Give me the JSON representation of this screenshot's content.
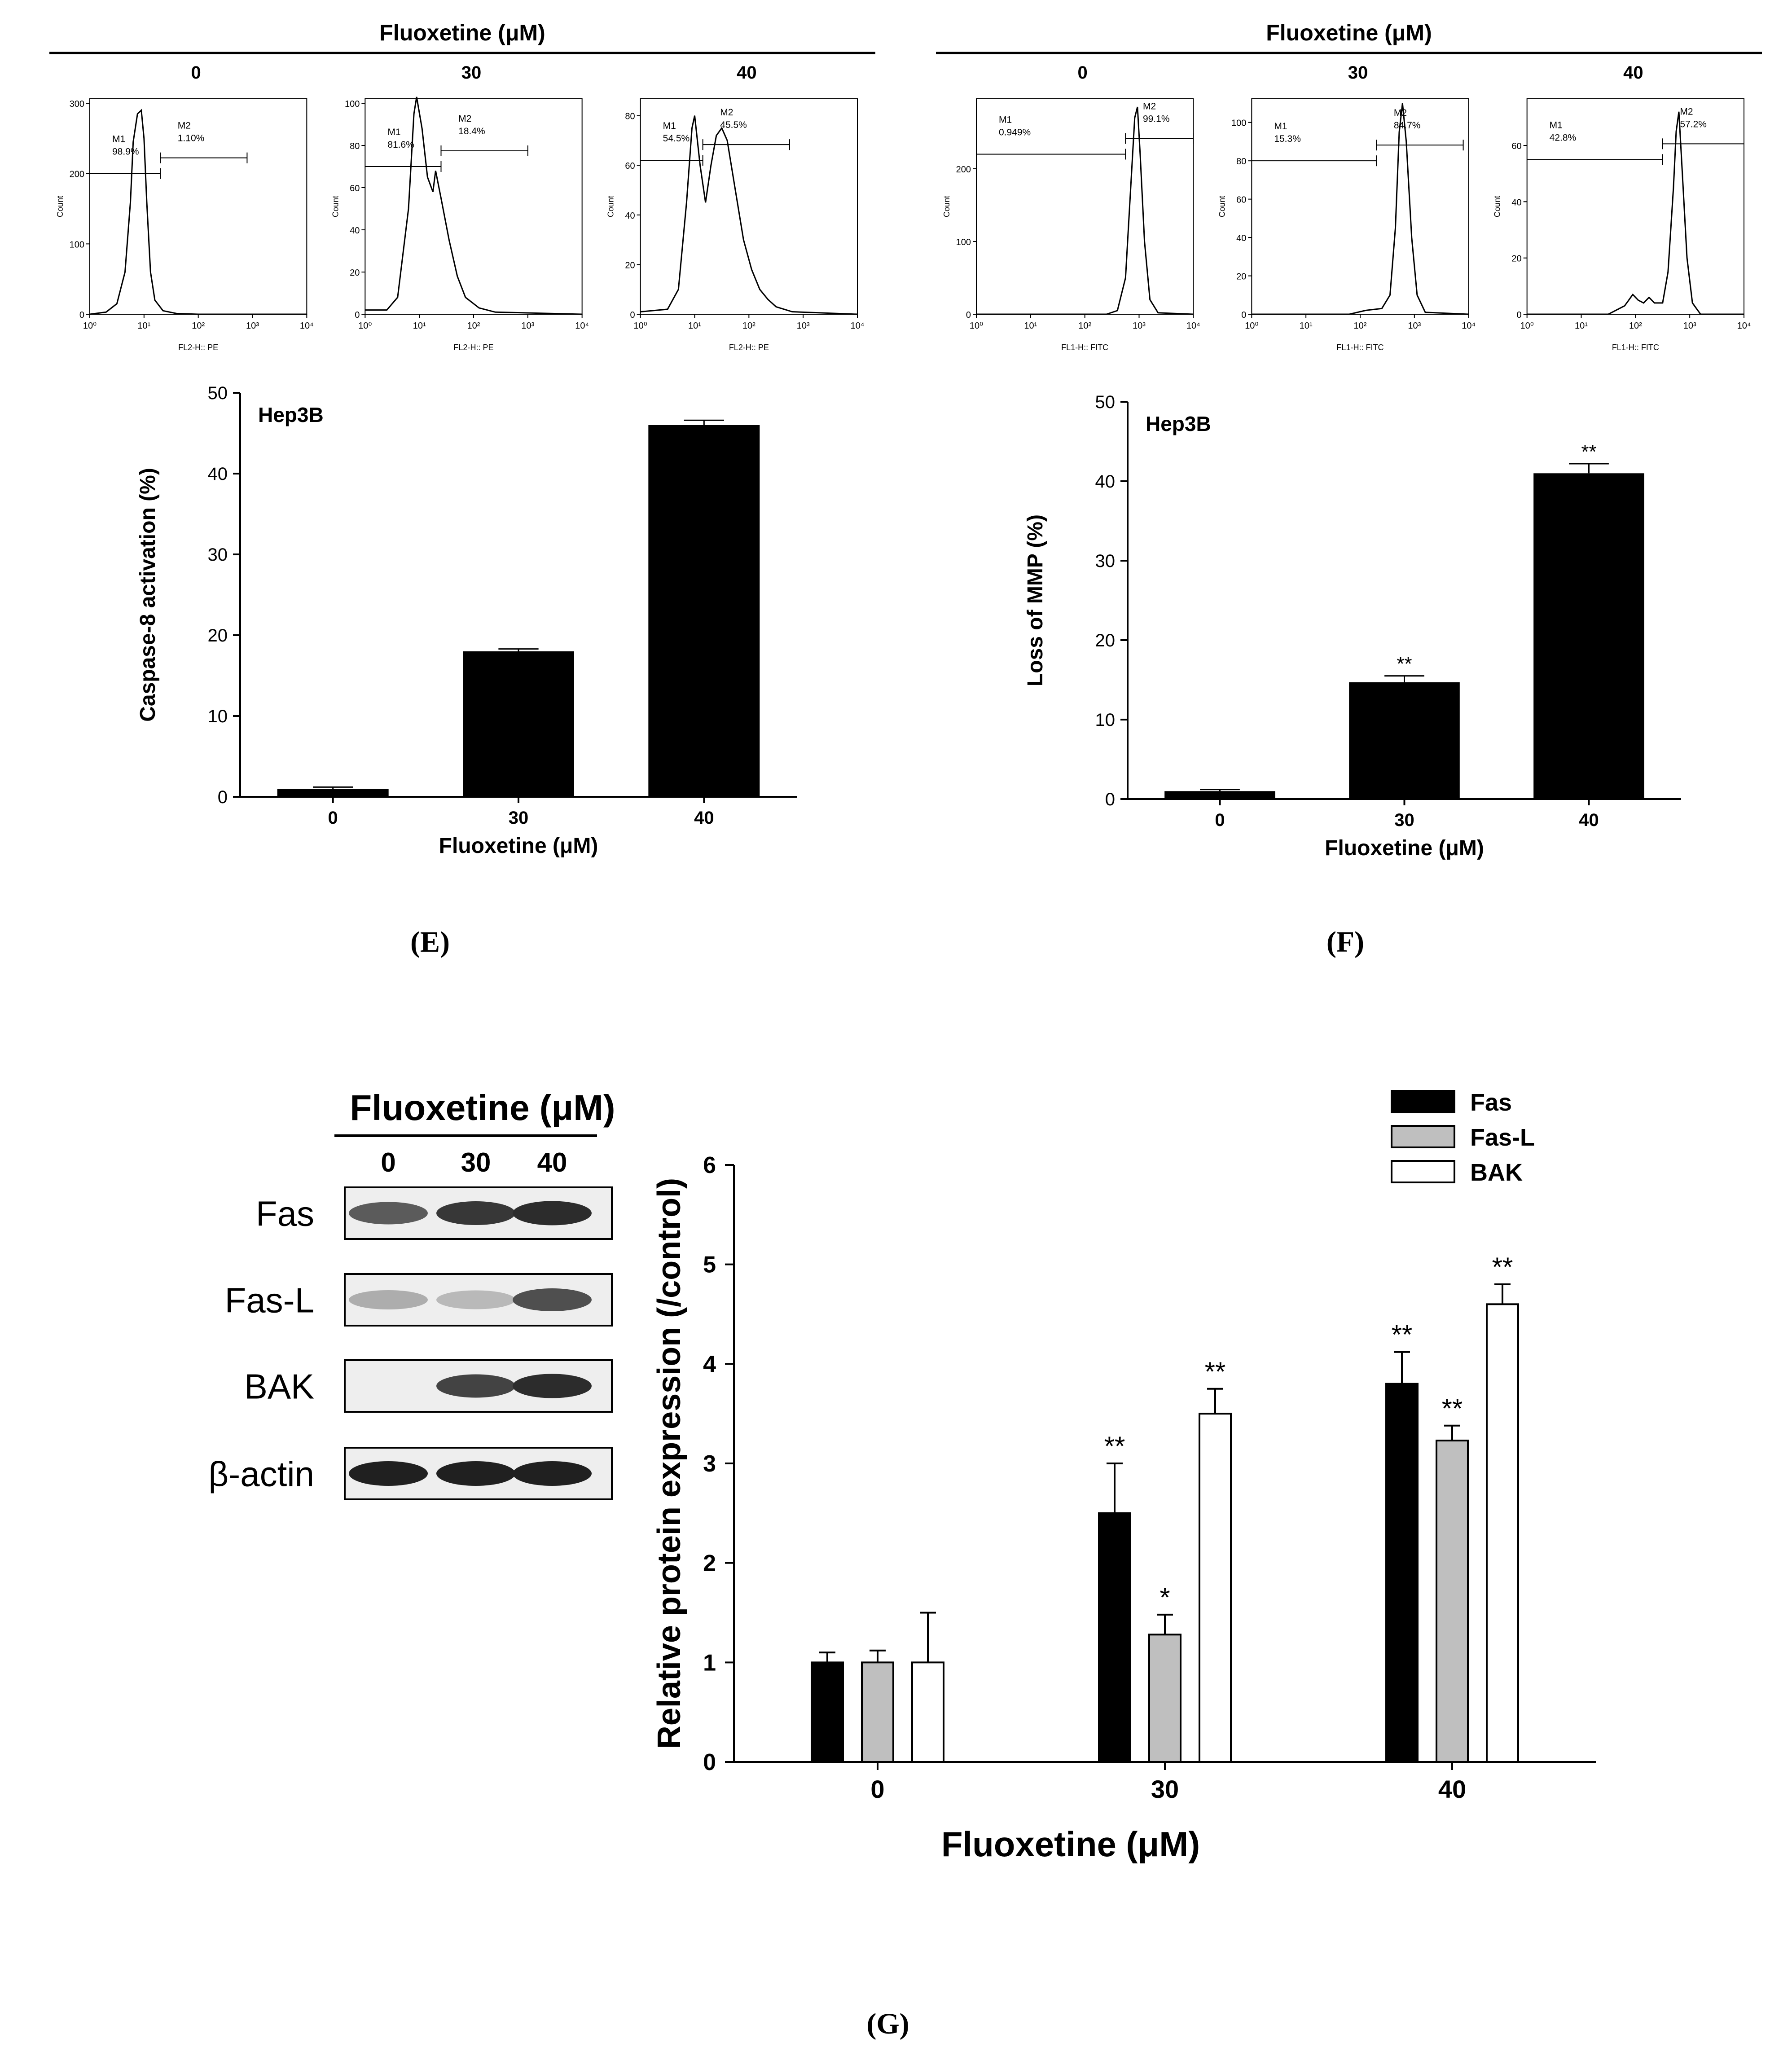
{
  "flow_top": [
    {
      "header": "Fluoxetine (μM)",
      "xlabel": "FL2-H:: PE",
      "plots": [
        {
          "dose": "0",
          "ymax": 300,
          "yticks": [
            0,
            100,
            200,
            300
          ],
          "m1": "M1",
          "m1pct": "98.9%",
          "m2": "M2",
          "m2pct": "1.10%",
          "split_decade": 1.3,
          "marker_y": 200,
          "curve": [
            [
              0,
              0
            ],
            [
              0.3,
              3
            ],
            [
              0.5,
              15
            ],
            [
              0.65,
              60
            ],
            [
              0.75,
              160
            ],
            [
              0.8,
              245
            ],
            [
              0.88,
              285
            ],
            [
              0.95,
              290
            ],
            [
              1.0,
              250
            ],
            [
              1.05,
              160
            ],
            [
              1.12,
              60
            ],
            [
              1.2,
              20
            ],
            [
              1.35,
              5
            ],
            [
              1.6,
              1
            ],
            [
              2.0,
              0
            ],
            [
              4,
              0
            ]
          ]
        },
        {
          "dose": "30",
          "ymax": 100,
          "yticks": [
            0,
            20,
            40,
            60,
            80,
            100
          ],
          "m1": "M1",
          "m1pct": "81.6%",
          "m2": "M2",
          "m2pct": "18.4%",
          "split_decade": 1.4,
          "marker_y": 70,
          "curve": [
            [
              0,
              2
            ],
            [
              0.4,
              2
            ],
            [
              0.6,
              8
            ],
            [
              0.8,
              50
            ],
            [
              0.9,
              95
            ],
            [
              0.95,
              103
            ],
            [
              1.05,
              88
            ],
            [
              1.15,
              65
            ],
            [
              1.25,
              58
            ],
            [
              1.3,
              68
            ],
            [
              1.4,
              55
            ],
            [
              1.55,
              35
            ],
            [
              1.7,
              18
            ],
            [
              1.85,
              8
            ],
            [
              2.1,
              3
            ],
            [
              2.4,
              1
            ],
            [
              4,
              0
            ]
          ]
        },
        {
          "dose": "40",
          "ymax": 85,
          "yticks": [
            0,
            20,
            40,
            60,
            80
          ],
          "m1": "M1",
          "m1pct": "54.5%",
          "m2": "M2",
          "m2pct": "45.5%",
          "split_decade": 1.15,
          "marker_y": 62,
          "curve": [
            [
              0,
              1
            ],
            [
              0.5,
              2
            ],
            [
              0.7,
              10
            ],
            [
              0.85,
              45
            ],
            [
              0.95,
              75
            ],
            [
              1.0,
              80
            ],
            [
              1.1,
              60
            ],
            [
              1.2,
              45
            ],
            [
              1.3,
              60
            ],
            [
              1.4,
              72
            ],
            [
              1.5,
              75
            ],
            [
              1.6,
              70
            ],
            [
              1.75,
              50
            ],
            [
              1.9,
              30
            ],
            [
              2.05,
              18
            ],
            [
              2.2,
              10
            ],
            [
              2.35,
              6
            ],
            [
              2.5,
              3
            ],
            [
              2.8,
              1
            ],
            [
              4,
              0
            ]
          ]
        }
      ]
    },
    {
      "header": "Fluoxetine (μM)",
      "xlabel": "FL1-H:: FITC",
      "plots": [
        {
          "dose": "0",
          "ymax": 290,
          "yticks": [
            0,
            100,
            200
          ],
          "m1": "M1",
          "m1pct": "0.949%",
          "m2": "M2",
          "m2pct": "99.1%",
          "split_decade": 2.75,
          "marker_y": 220,
          "curve": [
            [
              0,
              0
            ],
            [
              2.4,
              0
            ],
            [
              2.6,
              5
            ],
            [
              2.75,
              50
            ],
            [
              2.85,
              180
            ],
            [
              2.92,
              270
            ],
            [
              2.97,
              285
            ],
            [
              3.02,
              220
            ],
            [
              3.1,
              100
            ],
            [
              3.2,
              20
            ],
            [
              3.35,
              2
            ],
            [
              4,
              0
            ]
          ]
        },
        {
          "dose": "30",
          "ymax": 110,
          "yticks": [
            0,
            20,
            40,
            60,
            80,
            100
          ],
          "m1": "M1",
          "m1pct": "15.3%",
          "m2": "M2",
          "m2pct": "84.7%",
          "split_decade": 2.3,
          "marker_y": 80,
          "curve": [
            [
              0,
              0
            ],
            [
              1.8,
              0
            ],
            [
              2.1,
              2
            ],
            [
              2.4,
              3
            ],
            [
              2.55,
              10
            ],
            [
              2.65,
              45
            ],
            [
              2.72,
              95
            ],
            [
              2.78,
              110
            ],
            [
              2.85,
              90
            ],
            [
              2.95,
              40
            ],
            [
              3.05,
              10
            ],
            [
              3.2,
              1
            ],
            [
              4,
              0
            ]
          ]
        },
        {
          "dose": "40",
          "ymax": 75,
          "yticks": [
            0,
            20,
            40,
            60
          ],
          "m1": "M1",
          "m1pct": "42.8%",
          "m2": "M2",
          "m2pct": "57.2%",
          "split_decade": 2.5,
          "marker_y": 55,
          "curve": [
            [
              0,
              0
            ],
            [
              1.5,
              0
            ],
            [
              1.8,
              3
            ],
            [
              1.95,
              7
            ],
            [
              2.05,
              5
            ],
            [
              2.15,
              4
            ],
            [
              2.25,
              6
            ],
            [
              2.35,
              4
            ],
            [
              2.5,
              4
            ],
            [
              2.6,
              15
            ],
            [
              2.7,
              45
            ],
            [
              2.75,
              65
            ],
            [
              2.8,
              72
            ],
            [
              2.85,
              55
            ],
            [
              2.95,
              20
            ],
            [
              3.05,
              4
            ],
            [
              3.2,
              0
            ],
            [
              4,
              0
            ]
          ]
        }
      ]
    }
  ],
  "flow_xticks": [
    "10⁰",
    "10¹",
    "10²",
    "10³",
    "10⁴"
  ],
  "flow_ylabel": "Count",
  "panel_E": {
    "label": "(E)"
  },
  "panel_F": {
    "label": "(F)"
  },
  "panel_G": {
    "label": "(G)"
  },
  "blot": {
    "header": "Fluoxetine (μM)",
    "doses": [
      "0",
      "30",
      "40"
    ],
    "rows": [
      {
        "name": "Fas",
        "intensity": [
          0.7,
          0.85,
          0.9
        ]
      },
      {
        "name": "Fas-L",
        "intensity": [
          0.35,
          0.3,
          0.75
        ]
      },
      {
        "name": "BAK",
        "intensity": [
          0.0,
          0.8,
          0.9
        ]
      },
      {
        "name": "β-actin",
        "intensity": [
          0.95,
          0.95,
          0.95
        ]
      }
    ]
  },
  "chart_data": [
    {
      "type": "bar",
      "annotation": "Hep3B",
      "categories": [
        "0",
        "30",
        "40"
      ],
      "values": [
        1.0,
        18.0,
        46.0
      ],
      "errors": [
        0.2,
        0.3,
        0.6
      ],
      "significance": [
        "",
        "",
        ""
      ],
      "xlabel": "Fluoxetine (μM)",
      "ylabel": "Caspase-8 activation (%)",
      "ylim": [
        0,
        50
      ],
      "yticks": [
        0,
        10,
        20,
        30,
        40,
        50
      ]
    },
    {
      "type": "bar",
      "annotation": "Hep3B",
      "categories": [
        "0",
        "30",
        "40"
      ],
      "values": [
        1.0,
        14.7,
        41.0
      ],
      "errors": [
        0.2,
        0.8,
        1.2
      ],
      "significance": [
        "",
        "**",
        "**"
      ],
      "xlabel": "Fluoxetine (μM)",
      "ylabel": "Loss of MMP (%)",
      "ylim": [
        0,
        50
      ],
      "yticks": [
        0,
        10,
        20,
        30,
        40,
        50
      ]
    },
    {
      "type": "bar",
      "categories": [
        "0",
        "30",
        "40"
      ],
      "series": [
        {
          "name": "Fas",
          "color": "#000000",
          "values": [
            1.0,
            2.5,
            3.8
          ],
          "errors": [
            0.1,
            0.5,
            0.32
          ],
          "significance": [
            "",
            "**",
            "**"
          ]
        },
        {
          "name": "Fas-L",
          "color": "#bfbfbf",
          "values": [
            1.0,
            1.28,
            3.23
          ],
          "errors": [
            0.12,
            0.2,
            0.15
          ],
          "significance": [
            "",
            "*",
            "**"
          ]
        },
        {
          "name": "BAK",
          "color": "#ffffff",
          "values": [
            1.0,
            3.5,
            4.6
          ],
          "errors": [
            0.5,
            0.25,
            0.2
          ],
          "significance": [
            "",
            "**",
            "**"
          ]
        }
      ],
      "xlabel": "Fluoxetine (μM)",
      "ylabel": "Relative protein expression (/control)",
      "ylim": [
        0,
        6
      ],
      "yticks": [
        0,
        1,
        2,
        3,
        4,
        5,
        6
      ],
      "legend": "top-right"
    }
  ]
}
